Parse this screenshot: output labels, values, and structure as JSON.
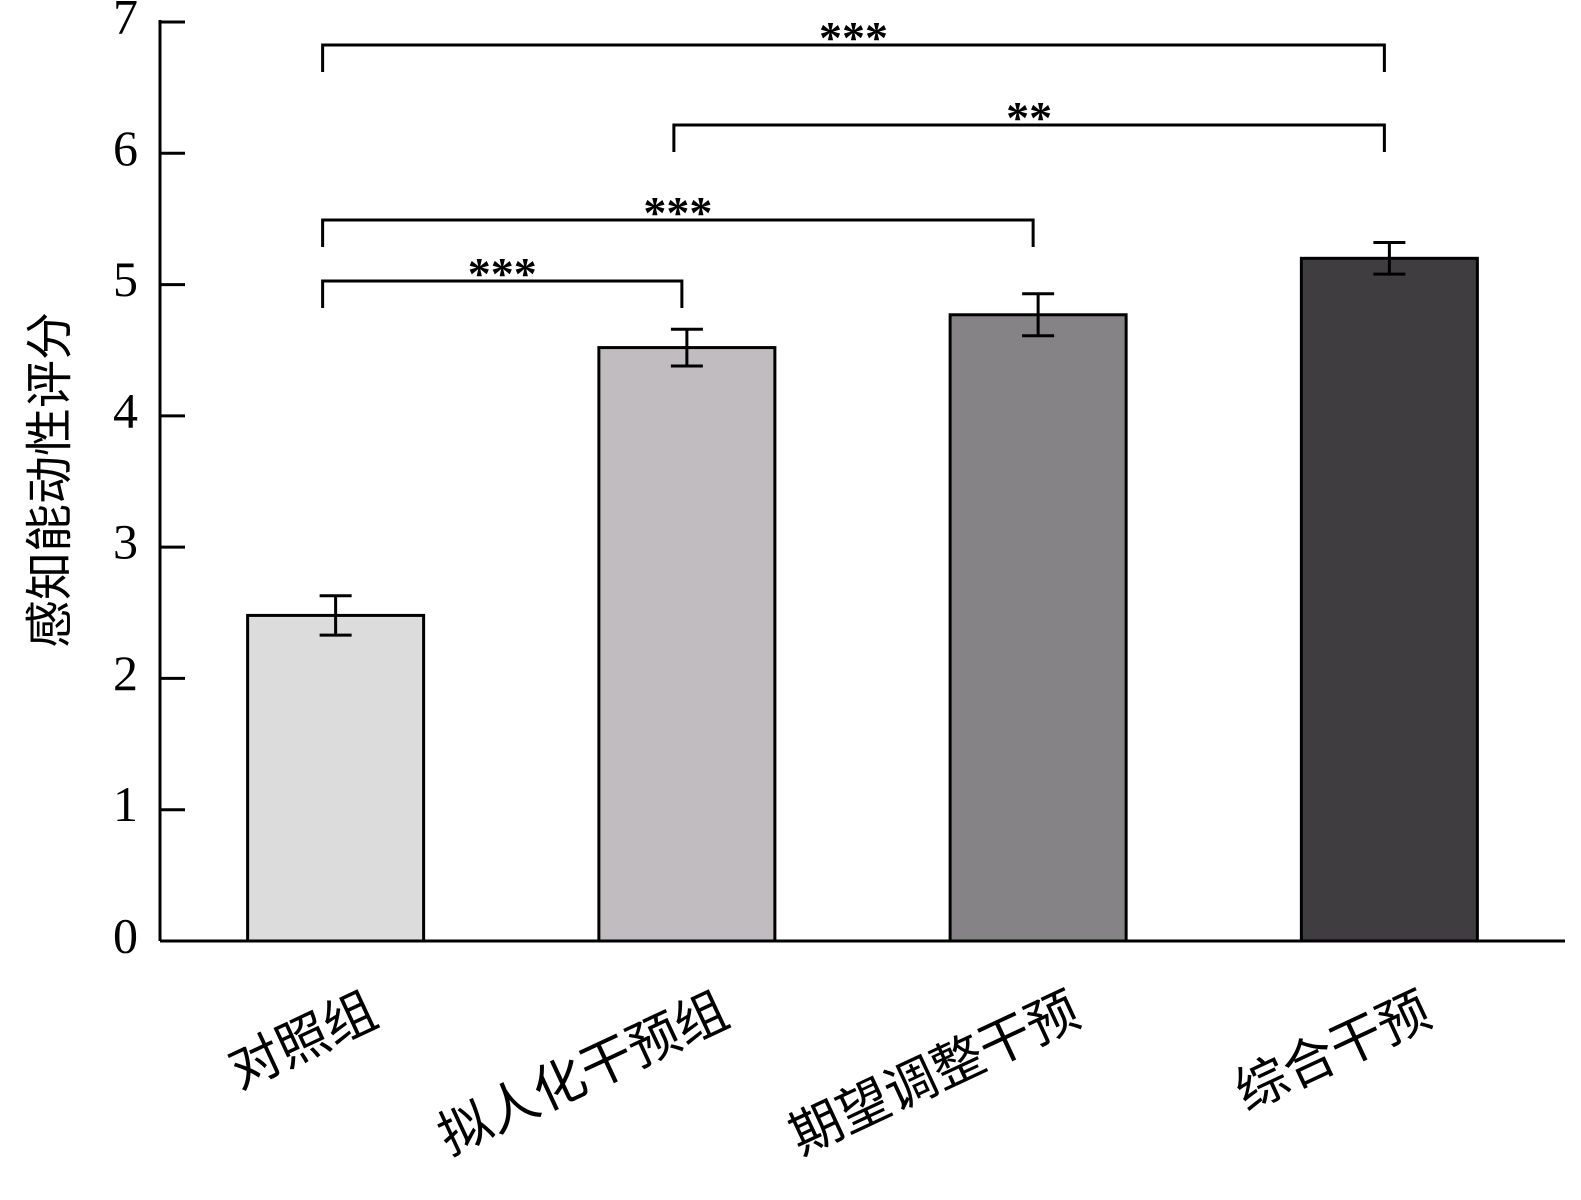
{
  "chart_data": {
    "type": "bar",
    "y_label": "感知能动性评分",
    "categories": [
      "对照组",
      "拟人化干预组",
      "期望调整干预",
      "综合干预"
    ],
    "values": [
      2.48,
      4.52,
      4.77,
      5.2
    ],
    "errors": [
      0.15,
      0.14,
      0.16,
      0.12
    ],
    "colors": [
      "#dcdcdc",
      "#c0bcbf",
      "#858386",
      "#3f3d40"
    ],
    "ylim": [
      0,
      7
    ],
    "yticks": [
      0,
      1,
      2,
      3,
      4,
      5,
      6,
      7
    ],
    "significance": [
      {
        "from": 0,
        "to": 1,
        "label": "***"
      },
      {
        "from": 0,
        "to": 2,
        "label": "***"
      },
      {
        "from": 1,
        "to": 3,
        "label": "**"
      },
      {
        "from": 0,
        "to": 3,
        "label": "***"
      }
    ]
  }
}
